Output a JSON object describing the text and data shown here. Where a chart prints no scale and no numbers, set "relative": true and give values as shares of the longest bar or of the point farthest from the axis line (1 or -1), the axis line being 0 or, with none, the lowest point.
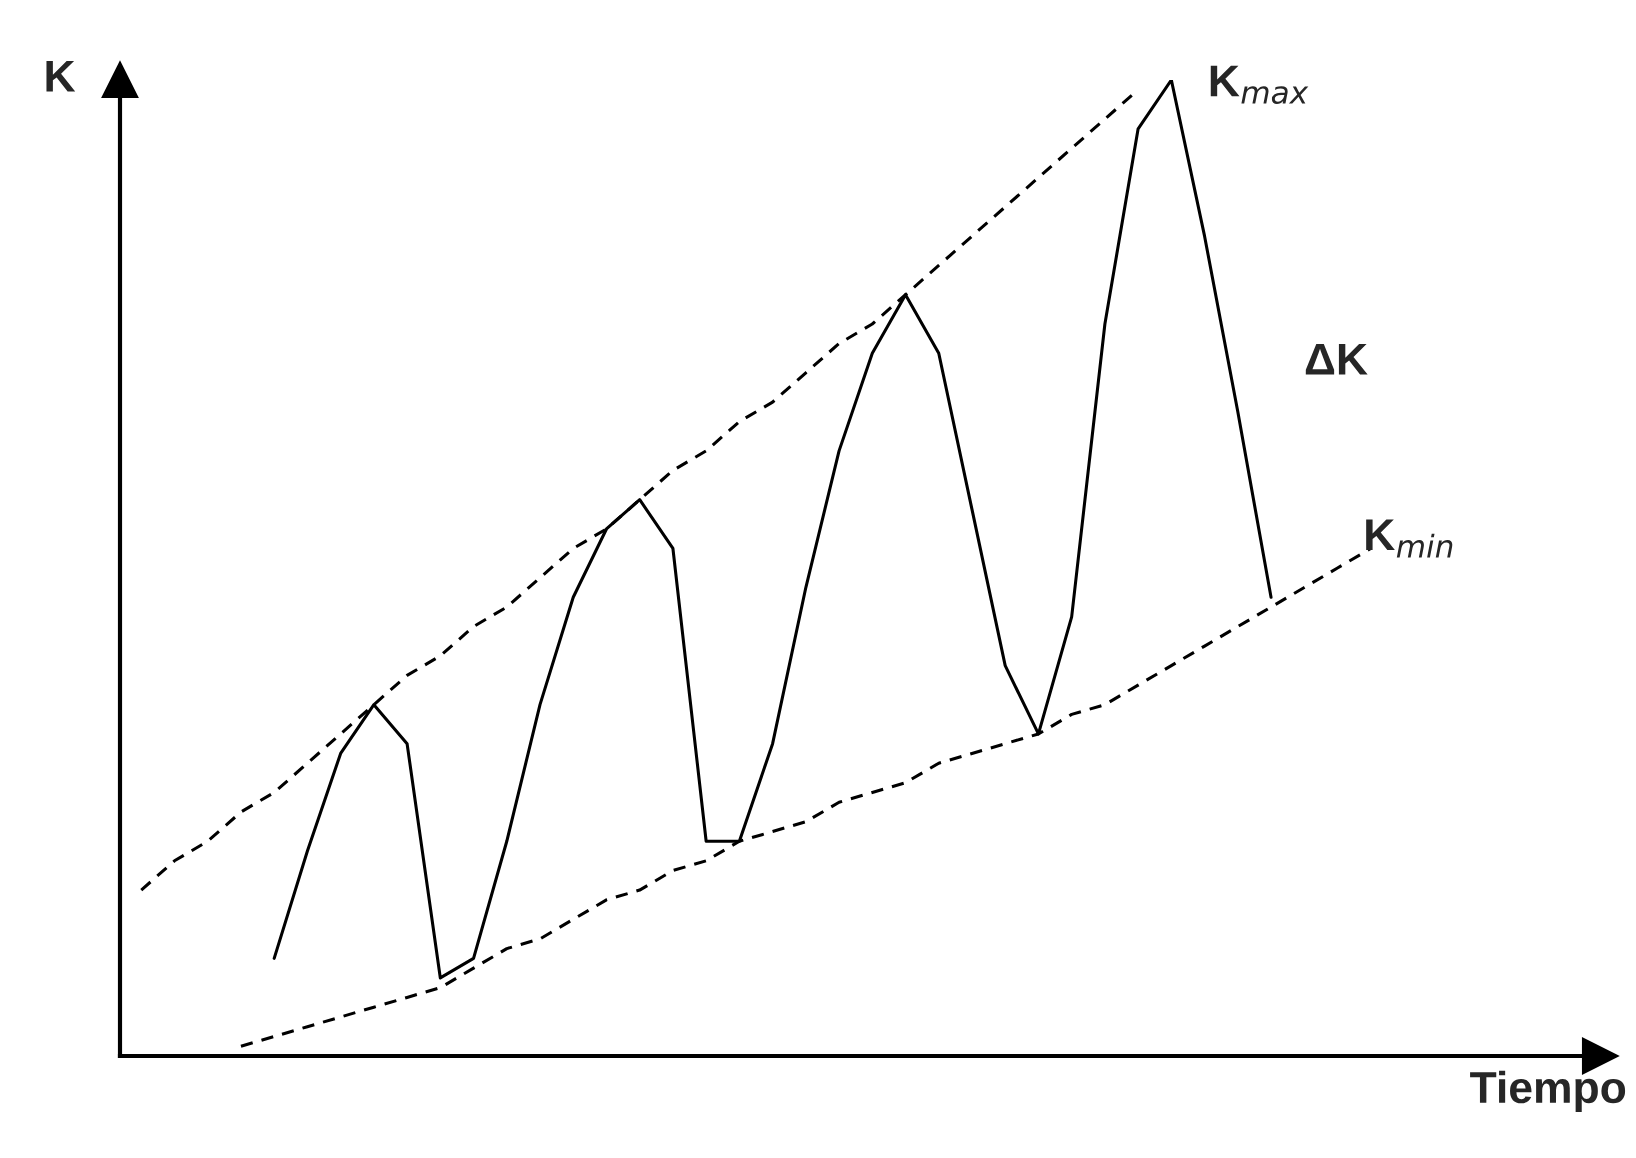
{
  "chart_data": {
    "type": "line",
    "relative": true,
    "xlabel": "Tiempo",
    "ylabel": "K",
    "grid": false,
    "legend": false,
    "marker": "none",
    "categories": [
      null,
      null,
      null,
      null,
      null,
      null,
      null,
      null,
      null,
      null,
      null,
      null,
      null,
      null,
      null,
      null,
      null,
      null,
      null,
      null,
      null,
      null,
      null,
      null,
      null,
      null,
      null,
      null,
      null,
      null,
      null,
      null,
      null,
      null,
      null,
      null,
      null,
      null
    ],
    "series": [
      {
        "color": "#000000",
        "line_style": "solid",
        "values": [
          null,
          null,
          null,
          null,
          0.1,
          0.21,
          0.31,
          0.36,
          0.32,
          0.08,
          0.1,
          0.22,
          0.36,
          0.47,
          0.54,
          0.57,
          0.52,
          0.22,
          0.22,
          0.32,
          0.48,
          0.62,
          0.72,
          0.78,
          0.72,
          0.56,
          0.4,
          0.33,
          0.45,
          0.75,
          0.95,
          1.0,
          0.84,
          0.66,
          0.47,
          null,
          null,
          null
        ]
      },
      {
        "color": "#000000",
        "line_style": "dashed",
        "values": [
          0.17,
          0.2,
          0.22,
          0.25,
          0.27,
          0.3,
          0.33,
          0.36,
          0.39,
          0.41,
          0.44,
          0.46,
          0.49,
          0.52,
          0.54,
          0.57,
          0.6,
          0.62,
          0.65,
          0.67,
          0.7,
          0.73,
          0.75,
          0.78,
          0.81,
          0.84,
          0.87,
          0.9,
          0.93,
          0.96,
          0.99,
          null,
          null,
          null,
          null,
          null,
          null,
          null
        ]
      },
      {
        "color": "#000000",
        "line_style": "dashed",
        "values": [
          null,
          null,
          null,
          0.01,
          0.02,
          0.03,
          0.04,
          0.05,
          0.06,
          0.07,
          0.09,
          0.11,
          0.12,
          0.14,
          0.16,
          0.17,
          0.19,
          0.2,
          0.22,
          0.23,
          0.24,
          0.26,
          0.27,
          0.28,
          0.3,
          0.31,
          0.32,
          0.33,
          0.35,
          0.36,
          0.38,
          0.4,
          0.42,
          0.44,
          0.46,
          0.48,
          0.5,
          0.52
        ]
      }
    ],
    "annotations": [
      "K$_{max}$",
      "K$_{min}$",
      "ΔK"
    ]
  }
}
